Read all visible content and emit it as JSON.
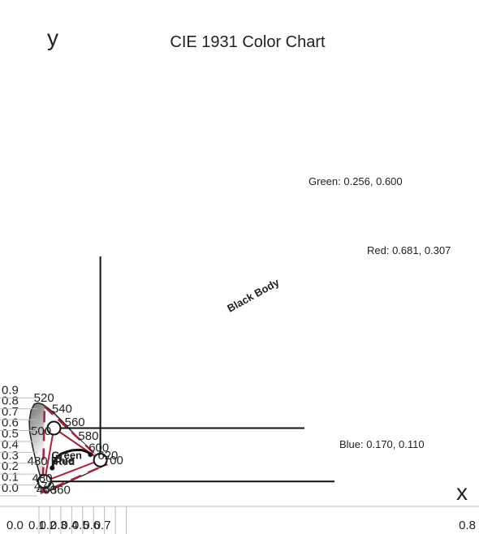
{
  "chart_data": {
    "type": "scatter",
    "title": "CIE 1931 Color Chart",
    "xlabel": "x",
    "ylabel": "y",
    "xlim": [
      0.0,
      0.8
    ],
    "ylim": [
      0.0,
      0.9
    ],
    "x_ticks": [
      "0.0",
      "0.1",
      "0.2",
      "0.3",
      "0.4",
      "0.5",
      "0.6",
      "0.7",
      "0.8"
    ],
    "y_ticks": [
      "0.0",
      "0.1",
      "0.2",
      "0.3",
      "0.4",
      "0.5",
      "0.6",
      "0.7",
      "0.8",
      "0.9"
    ],
    "grid": false,
    "colors": {
      "triangle": "#b01e3a",
      "locus_edge": "#222222",
      "marker_fill": "#ffffff"
    },
    "primaries": [
      {
        "label": "Green",
        "annotation": "Green: 0.256, 0.600",
        "x": 0.256,
        "y": 0.6
      },
      {
        "label": "Red",
        "annotation": "Red: 0.681, 0.307",
        "x": 0.681,
        "y": 0.307
      },
      {
        "label": "Blue",
        "annotation": "Blue: 0.170, 0.110",
        "x": 0.17,
        "y": 0.11
      }
    ],
    "reference_gamut": [
      {
        "x": 0.17,
        "y": 0.797
      },
      {
        "x": 0.735,
        "y": 0.265
      },
      {
        "x": 0.153,
        "y": 0.01
      }
    ],
    "black_body_label": "Black Body",
    "black_body_curve": [
      {
        "x": 0.24,
        "y": 0.234
      },
      {
        "x": 0.253,
        "y": 0.282
      },
      {
        "x": 0.281,
        "y": 0.33
      },
      {
        "x": 0.32,
        "y": 0.363
      },
      {
        "x": 0.37,
        "y": 0.382
      },
      {
        "x": 0.42,
        "y": 0.395
      },
      {
        "x": 0.47,
        "y": 0.4
      },
      {
        "x": 0.51,
        "y": 0.398
      },
      {
        "x": 0.54,
        "y": 0.389
      },
      {
        "x": 0.567,
        "y": 0.378
      },
      {
        "x": 0.59,
        "y": 0.357
      }
    ],
    "spectral_locus": [
      {
        "x": 0.175,
        "y": 0.005
      },
      {
        "x": 0.174,
        "y": 0.009
      },
      {
        "x": 0.166,
        "y": 0.04
      },
      {
        "x": 0.143,
        "y": 0.105
      },
      {
        "x": 0.124,
        "y": 0.18
      },
      {
        "x": 0.092,
        "y": 0.295
      },
      {
        "x": 0.06,
        "y": 0.43
      },
      {
        "x": 0.035,
        "y": 0.56
      },
      {
        "x": 0.03,
        "y": 0.665
      },
      {
        "x": 0.045,
        "y": 0.76
      },
      {
        "x": 0.075,
        "y": 0.82
      },
      {
        "x": 0.11,
        "y": 0.832
      },
      {
        "x": 0.15,
        "y": 0.82
      },
      {
        "x": 0.2,
        "y": 0.785
      },
      {
        "x": 0.26,
        "y": 0.735
      },
      {
        "x": 0.33,
        "y": 0.665
      },
      {
        "x": 0.41,
        "y": 0.58
      },
      {
        "x": 0.49,
        "y": 0.5
      },
      {
        "x": 0.56,
        "y": 0.43
      },
      {
        "x": 0.62,
        "y": 0.37
      },
      {
        "x": 0.665,
        "y": 0.33
      },
      {
        "x": 0.7,
        "y": 0.3
      },
      {
        "x": 0.735,
        "y": 0.265
      }
    ],
    "wavelength_labels": [
      {
        "text": "520",
        "x": 0.072,
        "y": 0.843
      },
      {
        "text": "540",
        "x": 0.237,
        "y": 0.742
      },
      {
        "text": "560",
        "x": 0.354,
        "y": 0.62
      },
      {
        "text": "580",
        "x": 0.479,
        "y": 0.493
      },
      {
        "text": "600",
        "x": 0.574,
        "y": 0.384
      },
      {
        "text": "620",
        "x": 0.657,
        "y": 0.315
      },
      {
        "text": "700",
        "x": 0.705,
        "y": 0.268
      },
      {
        "text": "500",
        "x": 0.045,
        "y": 0.537
      },
      {
        "text": "480",
        "x": 0.012,
        "y": 0.26
      },
      {
        "text": "480",
        "x": 0.056,
        "y": 0.103
      },
      {
        "text": "470",
        "x": 0.074,
        "y": 0.03
      },
      {
        "text": "460",
        "x": 0.094,
        "y": -0.003
      },
      {
        "text": "360",
        "x": 0.222,
        "y": -0.003
      }
    ]
  }
}
